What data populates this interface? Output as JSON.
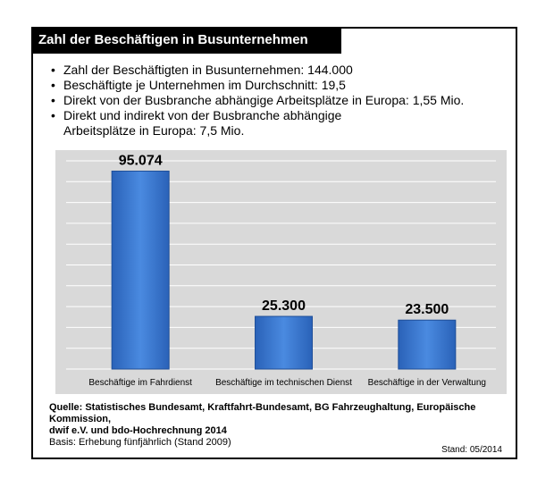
{
  "header": {
    "title": "Zahl der Beschäftigen in Busunternehmen"
  },
  "bullets": [
    {
      "text": "Zahl der Beschäftigten in Busunternehmen: 144.000"
    },
    {
      "text": "Beschäftigte je Unternehmen im Durchschnitt: 19,5"
    },
    {
      "text": "Direkt von der Busbranche abhängige Arbeitsplätze in Europa: 1,55 Mio."
    },
    {
      "text": "Direkt und indirekt von der Busbranche abhängige",
      "continuation": "Arbeitsplätze in Europa: 7,5 Mio."
    }
  ],
  "chart_data": {
    "type": "bar",
    "categories": [
      "Beschäftige im Fahrdienst",
      "Beschäftige im technischen Dienst",
      "Beschäftige in der Verwaltung"
    ],
    "values": [
      95074,
      25300,
      23500
    ],
    "data_labels": [
      "95.074",
      "25.300",
      "23.500"
    ],
    "ylim": [
      0,
      100000
    ],
    "grid": true,
    "bar_color": "#3a7bd5",
    "background_color": "#d9d9d9"
  },
  "source": {
    "line1": "Quelle: Statistisches Bundesamt, Kraftfahrt-Bundesamt, BG Fahrzeughaltung, Europäische Kommission,",
    "line2": "dwif e.V. und bdo-Hochrechnung 2014",
    "line3": "Basis: Erhebung fünfjährlich (Stand 2009)"
  },
  "footer": {
    "stand": "Stand: 05/2014"
  }
}
